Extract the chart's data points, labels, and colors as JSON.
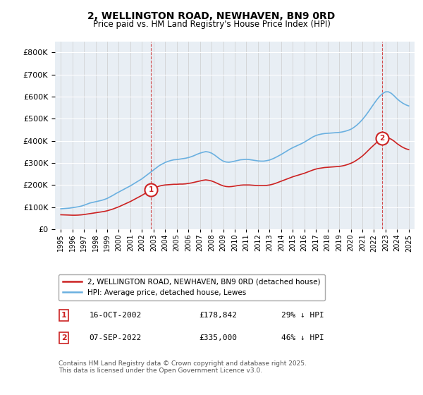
{
  "title": "2, WELLINGTON ROAD, NEWHAVEN, BN9 0RD",
  "subtitle": "Price paid vs. HM Land Registry's House Price Index (HPI)",
  "legend_line1": "2, WELLINGTON ROAD, NEWHAVEN, BN9 0RD (detached house)",
  "legend_line2": "HPI: Average price, detached house, Lewes",
  "annotation1_label": "1",
  "annotation1_date": "16-OCT-2002",
  "annotation1_price": "£178,842",
  "annotation1_hpi": "29% ↓ HPI",
  "annotation2_label": "2",
  "annotation2_date": "07-SEP-2022",
  "annotation2_price": "£335,000",
  "annotation2_hpi": "46% ↓ HPI",
  "footer": "Contains HM Land Registry data © Crown copyright and database right 2025.\nThis data is licensed under the Open Government Licence v3.0.",
  "hpi_color": "#6ab0e0",
  "price_color": "#cc2222",
  "marker1_x": 2002.79,
  "marker2_x": 2022.68,
  "ylim_max": 850000,
  "background_color": "#ffffff",
  "plot_bg_color": "#e8eef4",
  "hpi_years": [
    1995.0,
    1995.25,
    1995.5,
    1995.75,
    1996.0,
    1996.25,
    1996.5,
    1996.75,
    1997.0,
    1997.25,
    1997.5,
    1997.75,
    1998.0,
    1998.25,
    1998.5,
    1998.75,
    1999.0,
    1999.25,
    1999.5,
    1999.75,
    2000.0,
    2000.25,
    2000.5,
    2000.75,
    2001.0,
    2001.25,
    2001.5,
    2001.75,
    2002.0,
    2002.25,
    2002.5,
    2002.75,
    2003.0,
    2003.25,
    2003.5,
    2003.75,
    2004.0,
    2004.25,
    2004.5,
    2004.75,
    2005.0,
    2005.25,
    2005.5,
    2005.75,
    2006.0,
    2006.25,
    2006.5,
    2006.75,
    2007.0,
    2007.25,
    2007.5,
    2007.75,
    2008.0,
    2008.25,
    2008.5,
    2008.75,
    2009.0,
    2009.25,
    2009.5,
    2009.75,
    2010.0,
    2010.25,
    2010.5,
    2010.75,
    2011.0,
    2011.25,
    2011.5,
    2011.75,
    2012.0,
    2012.25,
    2012.5,
    2012.75,
    2013.0,
    2013.25,
    2013.5,
    2013.75,
    2014.0,
    2014.25,
    2014.5,
    2014.75,
    2015.0,
    2015.25,
    2015.5,
    2015.75,
    2016.0,
    2016.25,
    2016.5,
    2016.75,
    2017.0,
    2017.25,
    2017.5,
    2017.75,
    2018.0,
    2018.25,
    2018.5,
    2018.75,
    2019.0,
    2019.25,
    2019.5,
    2019.75,
    2020.0,
    2020.25,
    2020.5,
    2020.75,
    2021.0,
    2021.25,
    2021.5,
    2021.75,
    2022.0,
    2022.25,
    2022.5,
    2022.75,
    2023.0,
    2023.25,
    2023.5,
    2023.75,
    2024.0,
    2024.25,
    2024.5,
    2024.75,
    2025.0
  ],
  "hpi_values": [
    92000,
    93000,
    94000,
    95000,
    97000,
    99000,
    101000,
    104000,
    108000,
    113000,
    118000,
    121000,
    124000,
    127000,
    130000,
    134000,
    139000,
    146000,
    153000,
    161000,
    168000,
    175000,
    182000,
    189000,
    196000,
    204000,
    212000,
    220000,
    228000,
    238000,
    248000,
    258000,
    268000,
    278000,
    288000,
    295000,
    302000,
    307000,
    311000,
    314000,
    315000,
    317000,
    319000,
    321000,
    324000,
    328000,
    333000,
    339000,
    344000,
    348000,
    351000,
    349000,
    344000,
    336000,
    326000,
    316000,
    308000,
    304000,
    303000,
    305000,
    308000,
    311000,
    314000,
    315000,
    316000,
    315000,
    313000,
    311000,
    309000,
    308000,
    308000,
    310000,
    313000,
    318000,
    324000,
    331000,
    338000,
    346000,
    354000,
    362000,
    369000,
    375000,
    381000,
    387000,
    394000,
    402000,
    410000,
    418000,
    424000,
    428000,
    431000,
    433000,
    434000,
    435000,
    436000,
    437000,
    438000,
    440000,
    443000,
    447000,
    452000,
    460000,
    470000,
    482000,
    496000,
    512000,
    530000,
    549000,
    568000,
    586000,
    602000,
    614000,
    622000,
    622000,
    615000,
    603000,
    590000,
    579000,
    570000,
    563000,
    558000
  ],
  "red_years": [
    1995.0,
    1995.25,
    1995.5,
    1995.75,
    1996.0,
    1996.25,
    1996.5,
    1996.75,
    1997.0,
    1997.25,
    1997.5,
    1997.75,
    1998.0,
    1998.25,
    1998.5,
    1998.75,
    1999.0,
    1999.25,
    1999.5,
    1999.75,
    2000.0,
    2000.25,
    2000.5,
    2000.75,
    2001.0,
    2001.25,
    2001.5,
    2001.75,
    2002.0,
    2002.25,
    2002.5,
    2002.75,
    2003.0,
    2003.25,
    2003.5,
    2003.75,
    2004.0,
    2004.25,
    2004.5,
    2004.75,
    2005.0,
    2005.25,
    2005.5,
    2005.75,
    2006.0,
    2006.25,
    2006.5,
    2006.75,
    2007.0,
    2007.25,
    2007.5,
    2007.75,
    2008.0,
    2008.25,
    2008.5,
    2008.75,
    2009.0,
    2009.25,
    2009.5,
    2009.75,
    2010.0,
    2010.25,
    2010.5,
    2010.75,
    2011.0,
    2011.25,
    2011.5,
    2011.75,
    2012.0,
    2012.25,
    2012.5,
    2012.75,
    2013.0,
    2013.25,
    2013.5,
    2013.75,
    2014.0,
    2014.25,
    2014.5,
    2014.75,
    2015.0,
    2015.25,
    2015.5,
    2015.75,
    2016.0,
    2016.25,
    2016.5,
    2016.75,
    2017.0,
    2017.25,
    2017.5,
    2017.75,
    2018.0,
    2018.25,
    2018.5,
    2018.75,
    2019.0,
    2019.25,
    2019.5,
    2019.75,
    2020.0,
    2020.25,
    2020.5,
    2020.75,
    2021.0,
    2021.25,
    2021.5,
    2021.75,
    2022.0,
    2022.25,
    2022.5,
    2022.75,
    2023.0,
    2023.25,
    2023.5,
    2023.75,
    2024.0,
    2024.25,
    2024.5,
    2024.75,
    2025.0
  ],
  "red_values": [
    65000,
    64500,
    64000,
    63500,
    63000,
    63000,
    63500,
    64500,
    66000,
    68000,
    70000,
    72000,
    74000,
    76000,
    78000,
    80000,
    83000,
    87000,
    91000,
    96000,
    101000,
    107000,
    113000,
    119000,
    125000,
    132000,
    139000,
    146000,
    153000,
    161000,
    169000,
    177000,
    184000,
    190000,
    195000,
    198000,
    200000,
    201000,
    202000,
    203000,
    203000,
    204000,
    204000,
    205000,
    207000,
    209000,
    212000,
    215000,
    218000,
    221000,
    223000,
    221000,
    218000,
    213000,
    207000,
    201000,
    196000,
    193000,
    192000,
    193000,
    195000,
    197000,
    199000,
    200000,
    200000,
    200000,
    199000,
    198000,
    197000,
    197000,
    197000,
    198000,
    200000,
    203000,
    207000,
    212000,
    217000,
    222000,
    227000,
    232000,
    237000,
    241000,
    245000,
    249000,
    253000,
    258000,
    263000,
    268000,
    272000,
    275000,
    277000,
    279000,
    280000,
    281000,
    282000,
    283000,
    284000,
    286000,
    289000,
    293000,
    298000,
    304000,
    312000,
    321000,
    331000,
    343000,
    356000,
    369000,
    381000,
    393000,
    403000,
    410000,
    414000,
    413000,
    407000,
    398000,
    387000,
    378000,
    370000,
    364000,
    360000
  ]
}
